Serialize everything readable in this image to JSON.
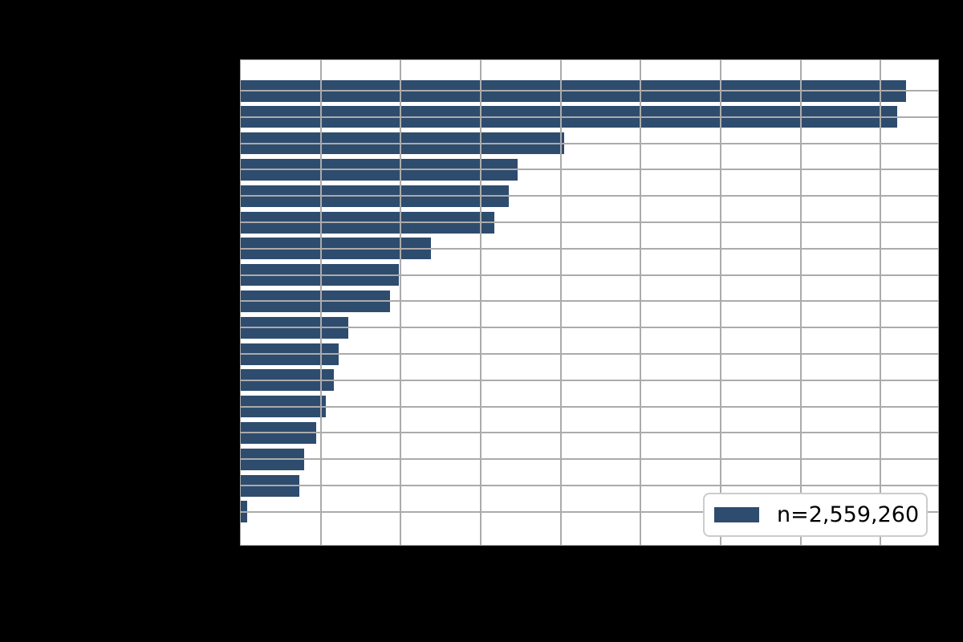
{
  "figure": {
    "background_color": "#000000",
    "note": "Figure margins are solid black; axis tick labels / titles are not visible (black on black)."
  },
  "legend": {
    "label": "n=2,559,260",
    "swatch_color": "#2e4c6e",
    "position": "lower-right"
  },
  "chart_data": {
    "type": "bar",
    "orientation": "horizontal",
    "title": "",
    "xlabel": "",
    "ylabel": "",
    "categories": [
      "",
      "",
      "",
      "",
      "",
      "",
      "",
      "",
      "",
      "",
      "",
      "",
      "",
      "",
      "",
      "",
      ""
    ],
    "values": [
      8.32,
      8.21,
      4.04,
      3.46,
      3.35,
      3.17,
      2.38,
      1.98,
      1.87,
      1.34,
      1.22,
      1.16,
      1.06,
      0.94,
      0.79,
      0.73,
      0.08
    ],
    "value_units": "x-axis gridline intervals (numeric tick labels not visible in image)",
    "xlim": [
      0,
      8.72
    ],
    "x_gridline_positions": [
      1,
      2,
      3,
      4,
      5,
      6,
      7,
      8
    ],
    "grid": true,
    "grid_over_bars": true,
    "bar_color": "#2e4c6e",
    "grid_color": "#ababab",
    "plot_background": "#ffffff",
    "legend_label": "n=2,559,260",
    "legend_position": "lower right"
  }
}
